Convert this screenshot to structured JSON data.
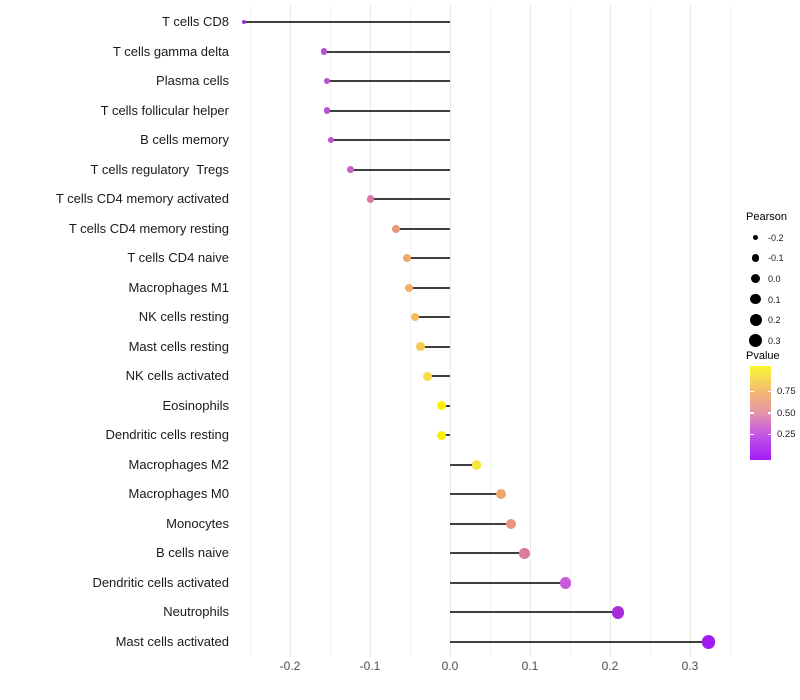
{
  "chart_data": {
    "type": "lollipop",
    "orientation": "horizontal",
    "title": "",
    "xlabel": "",
    "ylabel": "",
    "grid": "vertical major+minor, no horizontal",
    "x_axis": {
      "tick_labels": [
        "-0.2",
        "-0.1",
        "0.0",
        "0.1",
        "0.2",
        "0.3"
      ],
      "tick_values": [
        -0.2,
        -0.1,
        0.0,
        0.1,
        0.2,
        0.3
      ],
      "minor_step": 0.05,
      "range": [
        -0.27,
        0.36
      ]
    },
    "rows": [
      {
        "label": "T cells CD8",
        "pearson": -0.257,
        "color": "#9D2BE2"
      },
      {
        "label": "T cells gamma delta",
        "pearson": -0.158,
        "color": "#BA4FD2"
      },
      {
        "label": "Plasma cells",
        "pearson": -0.154,
        "color": "#BA4FD2"
      },
      {
        "label": "T cells follicular helper",
        "pearson": -0.154,
        "color": "#BA50D3"
      },
      {
        "label": "B cells memory",
        "pearson": -0.149,
        "color": "#BD53D0"
      },
      {
        "label": "T cells regulatory  Tregs",
        "pearson": -0.124,
        "color": "#C75FC6"
      },
      {
        "label": "T cells CD4 memory activated",
        "pearson": -0.099,
        "color": "#D877A8"
      },
      {
        "label": "T cells CD4 memory resting",
        "pearson": -0.067,
        "color": "#E8997B"
      },
      {
        "label": "T cells CD4 naive",
        "pearson": -0.054,
        "color": "#ECAB6B"
      },
      {
        "label": "Macrophages M1",
        "pearson": -0.051,
        "color": "#EEB065"
      },
      {
        "label": "NK cells resting",
        "pearson": -0.044,
        "color": "#F1BE5C"
      },
      {
        "label": "Mast cells resting",
        "pearson": -0.037,
        "color": "#F3CB52"
      },
      {
        "label": "NK cells activated",
        "pearson": -0.028,
        "color": "#F6DD47"
      },
      {
        "label": "Eosinophils",
        "pearson": -0.011,
        "color": "#F9F005"
      },
      {
        "label": "Dendritic cells resting",
        "pearson": -0.011,
        "color": "#F9F005"
      },
      {
        "label": "Macrophages M2",
        "pearson": 0.033,
        "color": "#F6E63B"
      },
      {
        "label": "Macrophages M0",
        "pearson": 0.064,
        "color": "#ECA76B"
      },
      {
        "label": "Monocytes",
        "pearson": 0.076,
        "color": "#E8947F"
      },
      {
        "label": "B cells naive",
        "pearson": 0.093,
        "color": "#DC7B9B"
      },
      {
        "label": "Dendritic cells activated",
        "pearson": 0.144,
        "color": "#C75BD8"
      },
      {
        "label": "Neutrophils",
        "pearson": 0.21,
        "color": "#A72BDB"
      },
      {
        "label": "Mast cells activated",
        "pearson": 0.323,
        "color": "#A01BF2"
      }
    ],
    "legend_size": {
      "title": "Pearson",
      "entries": [
        "-0.2",
        "-0.1",
        "0.0",
        "0.1",
        "0.2",
        "0.3"
      ]
    },
    "legend_color": {
      "title": "Pvalue",
      "tick_labels": [
        "0.75",
        "0.50",
        "0.25"
      ],
      "gradient_bottom_to_top": [
        {
          "pos": 0.0,
          "color": "#A81CF8"
        },
        {
          "pos": 0.15,
          "color": "#B33BEE"
        },
        {
          "pos": 0.3,
          "color": "#C75FE0"
        },
        {
          "pos": 0.5,
          "color": "#E495A8"
        },
        {
          "pos": 0.7,
          "color": "#F1B375"
        },
        {
          "pos": 0.85,
          "color": "#F7D65A"
        },
        {
          "pos": 1.0,
          "color": "#FBF62B"
        }
      ]
    },
    "styles": {
      "stick_color": "#3F3F3F",
      "grid_major_color": "#E9E9E9",
      "grid_minor_color": "#F3F3F3",
      "axis_text_color": "#4D4D4D",
      "category_text_color": "#1A1A1A"
    }
  }
}
